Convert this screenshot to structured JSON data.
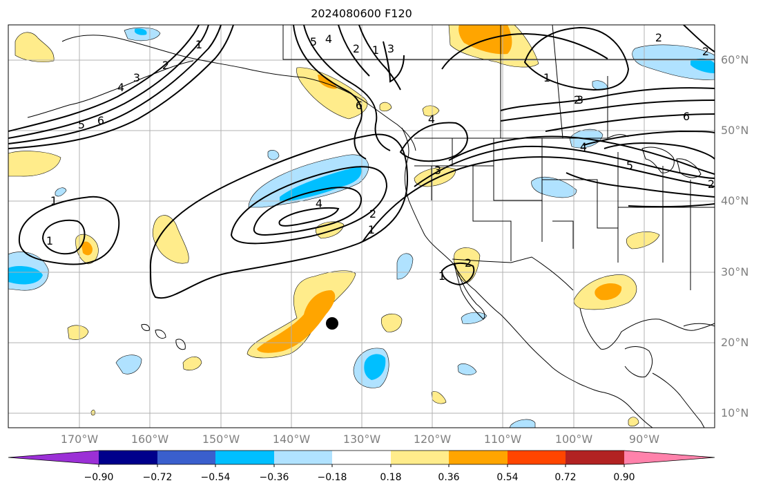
{
  "title": "2024080600 F120",
  "lat_labels": [
    "60°N",
    "50°N",
    "40°N",
    "30°N",
    "20°N",
    "10°N"
  ],
  "lon_labels": [
    "170°W",
    "160°W",
    "150°W",
    "140°W",
    "130°W",
    "120°W",
    "110°W",
    "100°W",
    "90°W"
  ],
  "colorbar": {
    "ticks": [
      "−0.90",
      "−0.72",
      "−0.54",
      "−0.36",
      "−0.18",
      "0.18",
      "0.36",
      "0.54",
      "0.72",
      "0.90"
    ],
    "colors": [
      "#9b30d6",
      "#00008b",
      "#3a5fcd",
      "#00bfff",
      "#b0e2ff",
      "#ffffff",
      "#ffec8b",
      "#ffa500",
      "#ff4500",
      "#b22222",
      "#ff82ab"
    ]
  },
  "fill_colors": {
    "light_blue": "#b0e2ff",
    "blue": "#00bfff",
    "light_yellow": "#ffec8b",
    "orange": "#ffa500"
  },
  "contour_labels": [
    "1",
    "2",
    "3",
    "4",
    "5",
    "6",
    "1",
    "2",
    "3",
    "4",
    "5",
    "6",
    "2",
    "3",
    "4",
    "1",
    "2",
    "4",
    "5",
    "6",
    "2",
    "1",
    "1",
    "2",
    "3",
    "4",
    "1",
    "2",
    "1",
    "2"
  ],
  "marker": "storm-position"
}
